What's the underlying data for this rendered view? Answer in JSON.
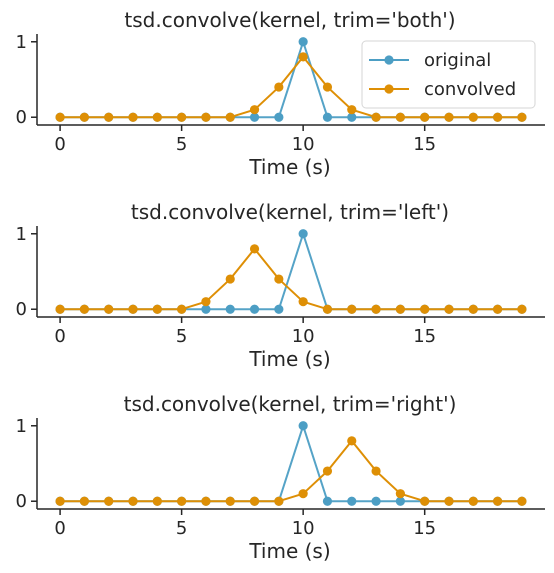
{
  "chart_data": [
    {
      "type": "line",
      "title": "tsd.convolve(kernel, trim='both')",
      "xlabel": "Time (s)",
      "ylabel": "",
      "x": [
        0,
        1,
        2,
        3,
        4,
        5,
        6,
        7,
        8,
        9,
        10,
        11,
        12,
        13,
        14,
        15,
        16,
        17,
        18,
        19
      ],
      "xlim": [
        -0.95,
        19.95
      ],
      "ylim": [
        -0.05,
        1.05
      ],
      "xticks": [
        0,
        5,
        10,
        15
      ],
      "yticks": [
        0,
        1
      ],
      "legend": "top-right",
      "series": [
        {
          "name": "original",
          "color": "#4c9ec4",
          "marker": "circle",
          "values": [
            0,
            0,
            0,
            0,
            0,
            0,
            0,
            0,
            0,
            0,
            1,
            0,
            0,
            0,
            0,
            0,
            0,
            0,
            0,
            0
          ]
        },
        {
          "name": "convolved",
          "color": "#de8f05",
          "marker": "circle",
          "values": [
            0,
            0,
            0,
            0,
            0,
            0,
            0,
            0,
            0.1,
            0.4,
            0.8,
            0.4,
            0.1,
            0,
            0,
            0,
            0,
            0,
            0,
            0
          ]
        }
      ]
    },
    {
      "type": "line",
      "title": "tsd.convolve(kernel, trim='left')",
      "xlabel": "Time (s)",
      "ylabel": "",
      "x": [
        0,
        1,
        2,
        3,
        4,
        5,
        6,
        7,
        8,
        9,
        10,
        11,
        12,
        13,
        14,
        15,
        16,
        17,
        18,
        19
      ],
      "xlim": [
        -0.95,
        19.95
      ],
      "ylim": [
        -0.05,
        1.05
      ],
      "xticks": [
        0,
        5,
        10,
        15
      ],
      "yticks": [
        0,
        1
      ],
      "series": [
        {
          "color": "#4c9ec4",
          "marker": "circle",
          "values": [
            0,
            0,
            0,
            0,
            0,
            0,
            0,
            0,
            0,
            0,
            1,
            0,
            0,
            0,
            0,
            0,
            0,
            0,
            0,
            0
          ]
        },
        {
          "color": "#de8f05",
          "marker": "circle",
          "values": [
            0,
            0,
            0,
            0,
            0,
            0,
            0.1,
            0.4,
            0.8,
            0.4,
            0.1,
            0,
            0,
            0,
            0,
            0,
            0,
            0,
            0,
            0
          ]
        }
      ]
    },
    {
      "type": "line",
      "title": "tsd.convolve(kernel, trim='right')",
      "xlabel": "Time (s)",
      "ylabel": "",
      "x": [
        0,
        1,
        2,
        3,
        4,
        5,
        6,
        7,
        8,
        9,
        10,
        11,
        12,
        13,
        14,
        15,
        16,
        17,
        18,
        19
      ],
      "xlim": [
        -0.95,
        19.95
      ],
      "ylim": [
        -0.05,
        1.05
      ],
      "xticks": [
        0,
        5,
        10,
        15
      ],
      "yticks": [
        0,
        1
      ],
      "series": [
        {
          "color": "#4c9ec4",
          "marker": "circle",
          "values": [
            0,
            0,
            0,
            0,
            0,
            0,
            0,
            0,
            0,
            0,
            1,
            0,
            0,
            0,
            0,
            0,
            0,
            0,
            0,
            0
          ]
        },
        {
          "color": "#de8f05",
          "marker": "circle",
          "values": [
            0,
            0,
            0,
            0,
            0,
            0,
            0,
            0,
            0,
            0,
            0.1,
            0.4,
            0.8,
            0.4,
            0.1,
            0,
            0,
            0,
            0,
            0
          ]
        }
      ]
    }
  ]
}
